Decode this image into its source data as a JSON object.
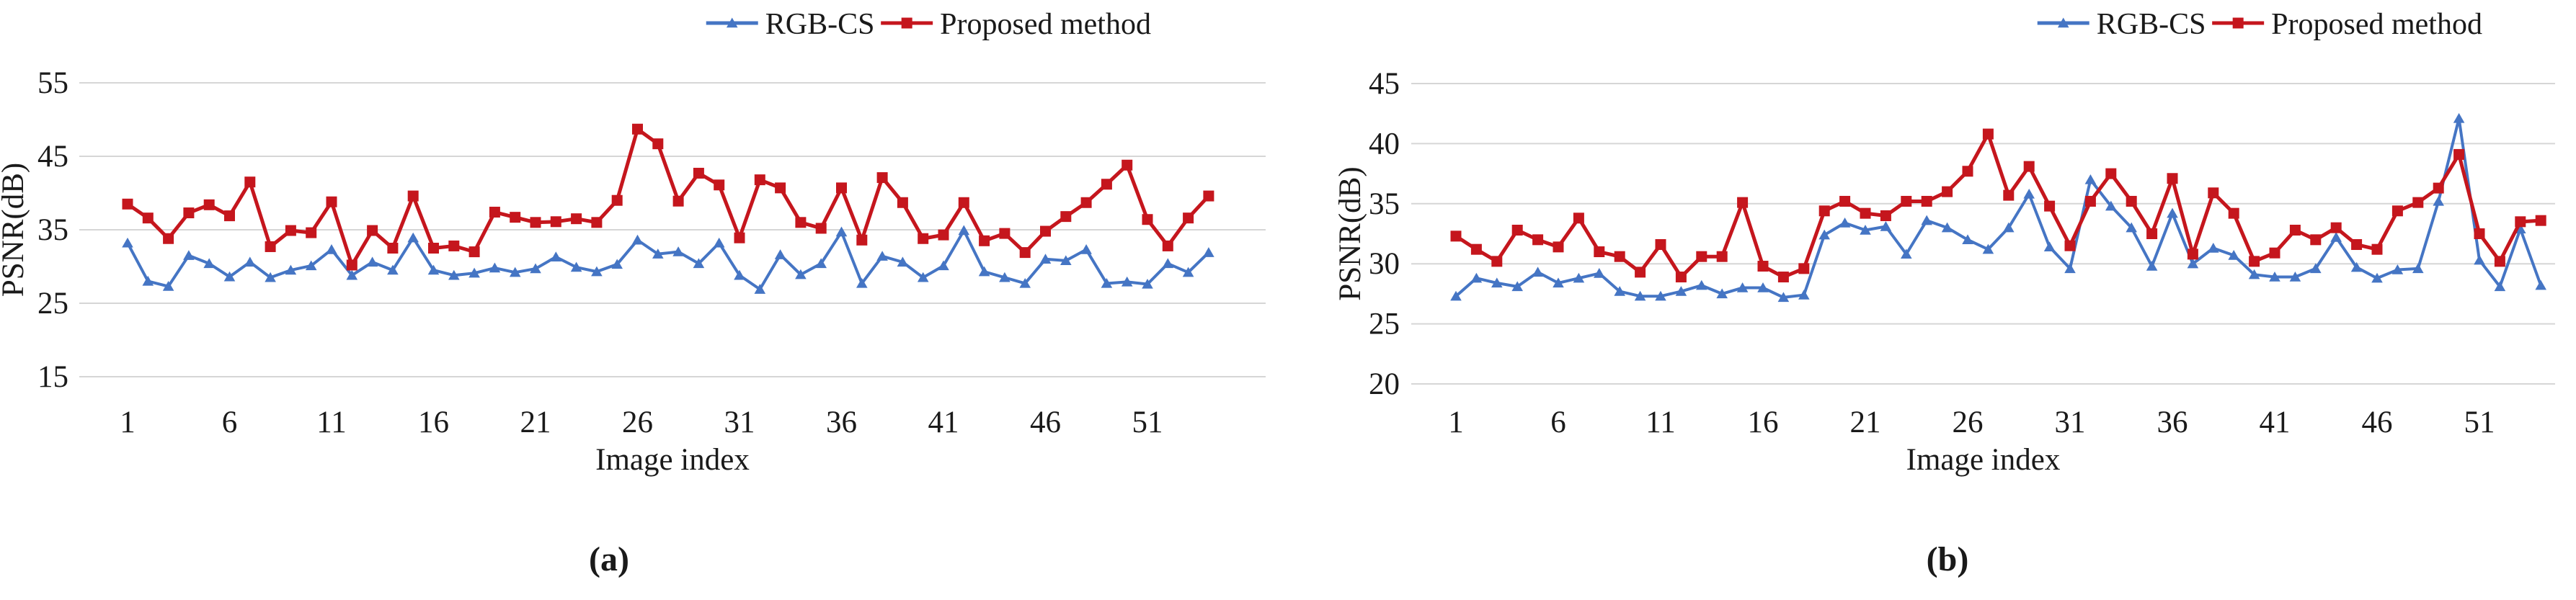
{
  "figure": {
    "legend_labels": [
      "RGB-CS",
      "Proposed method"
    ],
    "colors": {
      "rgb_cs": "#4575c4",
      "proposed": "#c5161d",
      "gridline": "#d6d6d6",
      "text": "#1a1a1a"
    },
    "chart_data": [
      {
        "type": "line",
        "caption": "(a)",
        "ylabel": "PSNR(dB)",
        "xlabel": "Image index",
        "ylim": [
          15,
          55
        ],
        "yticks": [
          15,
          25,
          35,
          45,
          55
        ],
        "xticks": [
          1,
          6,
          11,
          16,
          21,
          26,
          31,
          36,
          41,
          46,
          51
        ],
        "x_start": 1,
        "n_points": 54,
        "grid": true,
        "legend_position": "top",
        "series": [
          {
            "name": "RGB-CS",
            "marker": "triangle",
            "color_key": "rgb_cs",
            "values": [
              33.2,
              28.0,
              27.3,
              31.5,
              30.4,
              28.6,
              30.6,
              28.5,
              29.5,
              30.1,
              32.3,
              28.8,
              30.6,
              29.5,
              33.9,
              29.5,
              28.8,
              29.1,
              29.8,
              29.2,
              29.7,
              31.3,
              29.9,
              29.3,
              30.3,
              33.6,
              31.7,
              32.0,
              30.4,
              33.2,
              28.8,
              26.9,
              31.6,
              28.9,
              30.4,
              34.7,
              27.7,
              31.4,
              30.6,
              28.5,
              30.1,
              34.9,
              29.3,
              28.5,
              27.7,
              31.0,
              30.8,
              32.3,
              27.7,
              27.9,
              27.6,
              30.4,
              29.2,
              31.9
            ]
          },
          {
            "name": "Proposed method",
            "marker": "square",
            "color_key": "proposed",
            "values": [
              38.5,
              36.6,
              33.8,
              37.3,
              38.4,
              36.9,
              41.5,
              32.7,
              34.9,
              34.6,
              38.8,
              30.2,
              34.9,
              32.5,
              39.6,
              32.5,
              32.8,
              32.0,
              37.4,
              36.7,
              36.0,
              36.1,
              36.5,
              36.0,
              39.0,
              48.7,
              46.7,
              38.9,
              42.7,
              41.1,
              33.9,
              41.8,
              40.7,
              36.0,
              35.2,
              40.7,
              33.6,
              42.1,
              38.7,
              33.8,
              34.3,
              38.7,
              33.5,
              34.5,
              31.9,
              34.8,
              36.8,
              38.7,
              41.2,
              43.8,
              36.4,
              32.8,
              36.6,
              39.6
            ]
          }
        ]
      },
      {
        "type": "line",
        "caption": "(b)",
        "ylabel": "PSNR(dB)",
        "xlabel": "Image index",
        "ylim": [
          20,
          45
        ],
        "yticks": [
          20,
          25,
          30,
          35,
          40,
          45
        ],
        "xticks": [
          1,
          6,
          11,
          16,
          21,
          26,
          31,
          36,
          41,
          46,
          51
        ],
        "x_start": 1,
        "n_points": 54,
        "grid": true,
        "legend_position": "top",
        "series": [
          {
            "name": "RGB-CS",
            "marker": "triangle",
            "color_key": "rgb_cs",
            "values": [
              27.3,
              28.8,
              28.4,
              28.1,
              29.3,
              28.4,
              28.8,
              29.2,
              27.7,
              27.3,
              27.3,
              27.7,
              28.2,
              27.5,
              28.0,
              28.0,
              27.2,
              27.4,
              32.4,
              33.4,
              32.8,
              33.1,
              30.8,
              33.6,
              33.0,
              32.0,
              31.2,
              33.0,
              35.8,
              31.4,
              29.6,
              37.0,
              34.8,
              33.0,
              29.8,
              34.2,
              30.0,
              31.3,
              30.7,
              29.1,
              28.9,
              28.9,
              29.6,
              32.2,
              29.7,
              28.8,
              29.5,
              29.6,
              35.2,
              42.1,
              30.3,
              28.1,
              32.9,
              28.2
            ]
          },
          {
            "name": "Proposed method",
            "marker": "square",
            "color_key": "proposed",
            "values": [
              32.3,
              31.2,
              30.2,
              32.8,
              32.0,
              31.4,
              33.8,
              31.0,
              30.6,
              29.3,
              31.6,
              28.9,
              30.6,
              30.6,
              35.1,
              29.8,
              28.9,
              29.6,
              34.4,
              35.2,
              34.2,
              34.0,
              35.2,
              35.2,
              36.0,
              37.7,
              40.8,
              35.7,
              38.1,
              34.8,
              31.5,
              35.2,
              37.5,
              35.2,
              32.5,
              37.1,
              30.8,
              35.9,
              34.2,
              30.2,
              30.9,
              32.8,
              32.0,
              33.0,
              31.6,
              31.2,
              34.4,
              35.1,
              36.3,
              39.1,
              32.5,
              30.2,
              33.5,
              33.6
            ]
          }
        ]
      }
    ]
  }
}
